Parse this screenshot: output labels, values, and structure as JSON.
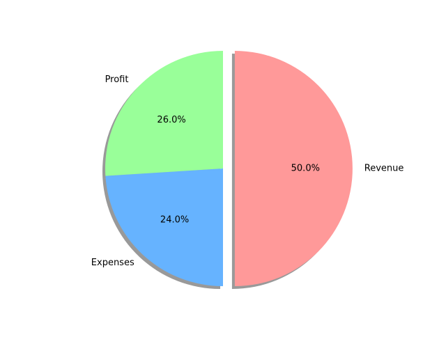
{
  "chart_data": {
    "type": "pie",
    "title": "",
    "start_angle_deg": 90,
    "counterclock": false,
    "shadow": true,
    "slices": [
      {
        "label": "Revenue",
        "value": 50.0,
        "pct_label": "50.0%",
        "color": "#ff9999",
        "explode": 0.1
      },
      {
        "label": "Expenses",
        "value": 24.0,
        "pct_label": "24.0%",
        "color": "#66b3ff",
        "explode": 0
      },
      {
        "label": "Profit",
        "value": 26.0,
        "pct_label": "26.0%",
        "color": "#99ff99",
        "explode": 0
      }
    ]
  }
}
